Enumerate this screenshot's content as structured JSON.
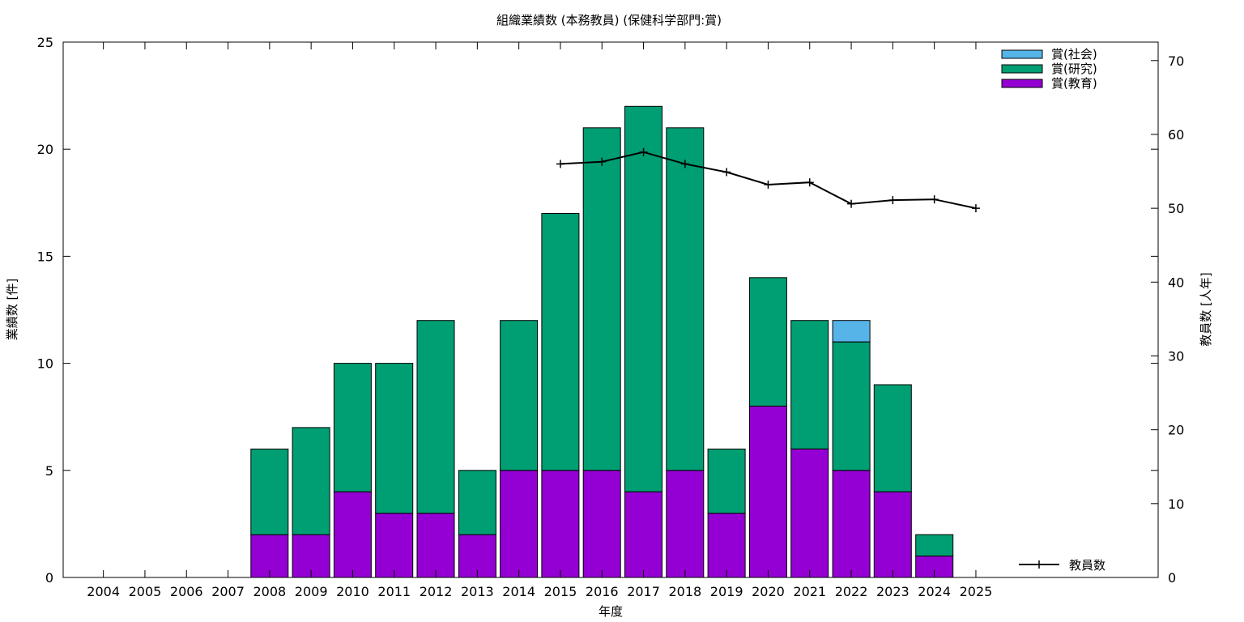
{
  "chart_data": {
    "type": "bar",
    "title": "組織業績数 (本務教員) (保健科学部門:賞)",
    "xlabel": "年度",
    "ylabel": "業績数 [件]",
    "y2label": "教員数 [人年]",
    "ylim": [
      0,
      25
    ],
    "y2lim": [
      0,
      72.5
    ],
    "yticks": [
      0,
      5,
      10,
      15,
      20,
      25
    ],
    "y2ticks": [
      0,
      10,
      20,
      30,
      40,
      50,
      60,
      70
    ],
    "categories": [
      "2004",
      "2005",
      "2006",
      "2007",
      "2008",
      "2009",
      "2010",
      "2011",
      "2012",
      "2013",
      "2014",
      "2015",
      "2016",
      "2017",
      "2018",
      "2019",
      "2020",
      "2021",
      "2022",
      "2023",
      "2024",
      "2025"
    ],
    "stacked": true,
    "series": [
      {
        "name": "賞(教育)",
        "color": "#9400d3",
        "values": [
          0,
          0,
          0,
          0,
          2,
          2,
          4,
          3,
          3,
          2,
          5,
          5,
          5,
          4,
          5,
          3,
          8,
          6,
          5,
          4,
          1,
          0
        ]
      },
      {
        "name": "賞(研究)",
        "color": "#009e73",
        "values": [
          0,
          0,
          0,
          0,
          4,
          5,
          6,
          7,
          9,
          3,
          7,
          12,
          16,
          18,
          16,
          3,
          6,
          6,
          6,
          5,
          1,
          0
        ]
      },
      {
        "name": "賞(社会)",
        "color": "#56b4e9",
        "values": [
          0,
          0,
          0,
          0,
          0,
          0,
          0,
          0,
          0,
          0,
          0,
          0,
          0,
          0,
          0,
          0,
          0,
          0,
          1,
          0,
          0,
          0
        ]
      }
    ],
    "line_series": {
      "name": "教員数",
      "color": "#000000",
      "axis": "y2",
      "x": [
        "2015",
        "2016",
        "2017",
        "2018",
        "2019",
        "2020",
        "2021",
        "2022",
        "2023",
        "2024",
        "2025"
      ],
      "values": [
        56.0,
        56.3,
        57.6,
        56.0,
        54.9,
        53.2,
        53.5,
        50.6,
        51.1,
        51.2,
        50.0
      ]
    },
    "legend_position": "top-right"
  }
}
